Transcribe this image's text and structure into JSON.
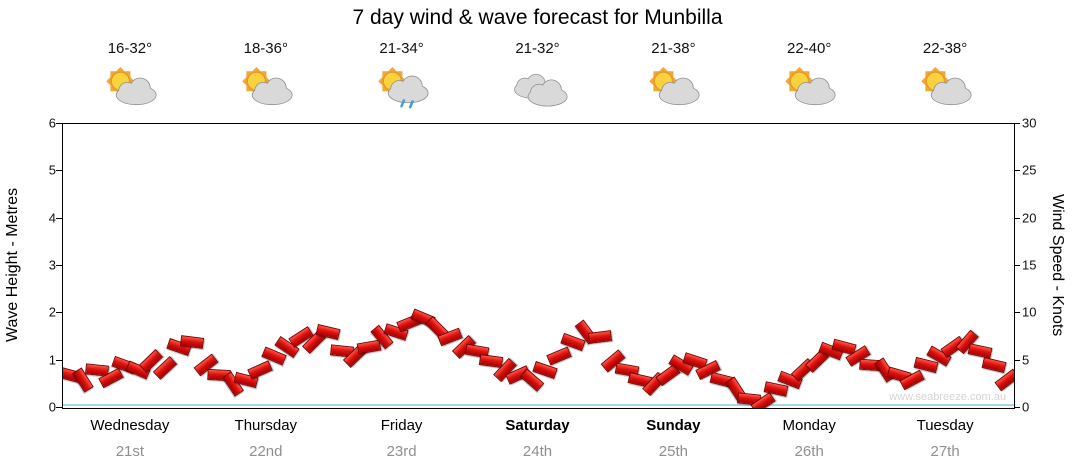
{
  "watermark": "www.seabreeze.com.au",
  "chart_data": {
    "type": "scatter",
    "title": "7 day wind & wave forecast for Munbilla",
    "legend": "none",
    "grid": false,
    "left_axis": {
      "label": "Wave Height - Metres",
      "min": 0,
      "max": 6,
      "ticks": [
        0,
        1,
        2,
        3,
        4,
        5,
        6
      ]
    },
    "right_axis": {
      "label": "Wind Speed - Knots",
      "min": 0,
      "max": 30,
      "ticks": [
        0,
        5,
        10,
        15,
        20,
        25,
        30
      ]
    },
    "days": [
      {
        "name": "Wednesday",
        "date": "21st",
        "temp": "16-32°",
        "icon": "sun-cloud",
        "bold": false
      },
      {
        "name": "Thursday",
        "date": "22nd",
        "temp": "18-36°",
        "icon": "sun-cloud",
        "bold": false
      },
      {
        "name": "Friday",
        "date": "23rd",
        "temp": "21-34°",
        "icon": "sun-cloud-rain",
        "bold": false
      },
      {
        "name": "Saturday",
        "date": "24th",
        "temp": "21-32°",
        "icon": "cloud",
        "bold": true
      },
      {
        "name": "Sunday",
        "date": "25th",
        "temp": "21-38°",
        "icon": "sun-cloud",
        "bold": true
      },
      {
        "name": "Monday",
        "date": "26th",
        "temp": "22-40°",
        "icon": "sun-cloud",
        "bold": false
      },
      {
        "name": "Tuesday",
        "date": "27th",
        "temp": "22-38°",
        "icon": "sun-cloud",
        "bold": false
      }
    ],
    "series": [
      {
        "name": "Wind Speed",
        "units": "knots",
        "marker": "red-flag",
        "color": "#dd1111",
        "values": [
          3.5,
          3,
          4,
          3.2,
          4.5,
          4,
          5,
          4.2,
          6.5,
          7,
          4.5,
          3.5,
          2.5,
          3,
          4,
          5.5,
          6.5,
          7.5,
          7,
          8,
          6,
          5.5,
          6.5,
          7.5,
          8,
          9,
          9.5,
          8.5,
          7.5,
          6.5,
          6,
          5,
          4,
          3.5,
          3,
          4,
          5.5,
          7,
          8,
          7.5,
          5,
          4,
          3,
          2.5,
          3.5,
          4.5,
          5,
          4,
          3,
          2,
          1,
          0.5,
          2,
          3,
          4,
          5,
          6,
          6.5,
          5.5,
          4.5,
          4,
          3.5,
          3,
          4.5,
          5.5,
          6.5,
          7,
          6,
          4.5,
          3
        ]
      },
      {
        "name": "Wave Height",
        "units": "metres",
        "marker": "line",
        "color": "#a9d6ea",
        "approx_constant_value": 0.05
      }
    ]
  }
}
